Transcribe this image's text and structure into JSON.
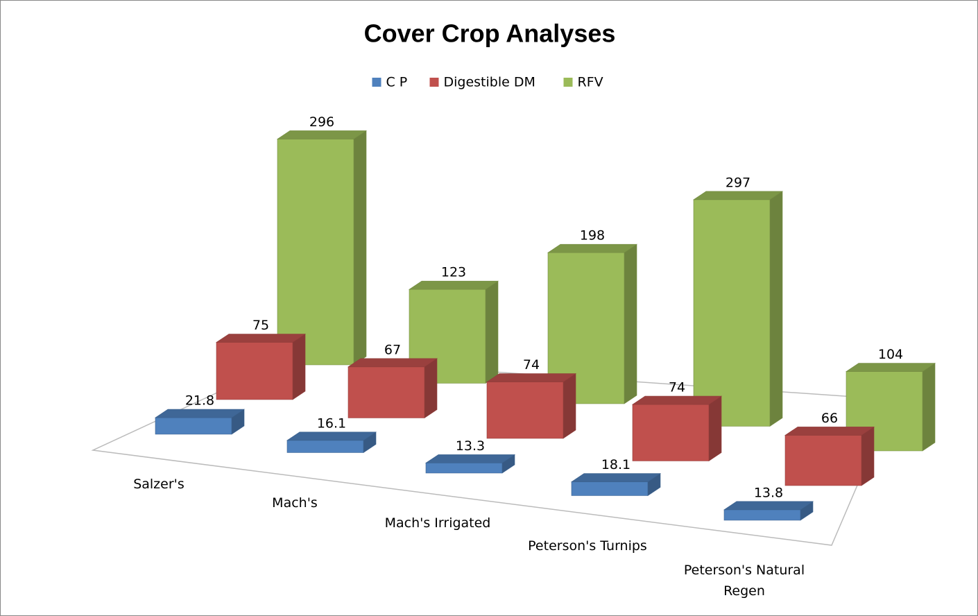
{
  "chart_data": {
    "type": "bar3d",
    "title": "Cover Crop Analyses",
    "categories": [
      "Salzer's",
      "Mach's",
      "Mach's Irrigated",
      "Peterson's Turnips",
      "Peterson's Natural Regen"
    ],
    "series": [
      {
        "name": "C P",
        "color": "#4f81bd",
        "values": [
          21.8,
          16.1,
          13.3,
          18.1,
          13.8
        ]
      },
      {
        "name": "Digestible DM",
        "color": "#c0504d",
        "values": [
          75,
          67,
          74,
          74,
          66
        ]
      },
      {
        "name": "RFV",
        "color": "#9bbb59",
        "values": [
          296,
          123,
          198,
          297,
          104
        ]
      }
    ],
    "legend": "top"
  }
}
